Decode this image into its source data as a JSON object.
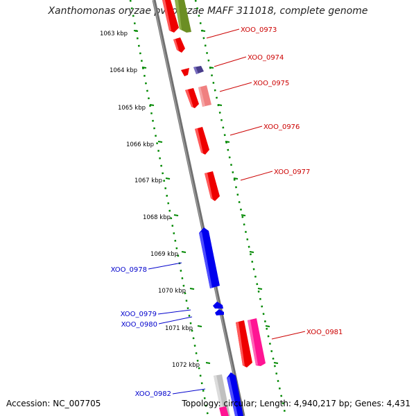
{
  "header": {
    "title": "Xanthomonas oryzae pv. oryzae MAFF 311018, complete genome"
  },
  "footer": {
    "accession": "Accession: NC_007705",
    "summary": "Topology: circular; Length: 4,940,217 bp; Genes: 4,431"
  },
  "colors": {
    "backbone": "#808080",
    "track_dots": "#008800",
    "forward_label": "#cc0000",
    "reverse_label": "#0000cc",
    "gene_red": "#ee0000",
    "gene_blue": "#0000ee",
    "gene_olive": "#6b8e23",
    "gene_pink": "#ff1493",
    "gene_salmon": "#f08080",
    "gene_purple": "#483d8b",
    "gene_gray": "#c0c0c0"
  },
  "scale_ticks": [
    "1063 kbp",
    "1064 kbp",
    "1065 kbp",
    "1066 kbp",
    "1067 kbp",
    "1068 kbp",
    "1069 kbp",
    "1070 kbp",
    "1071 kbp",
    "1072 kbp"
  ],
  "gene_labels": {
    "forward": [
      "XOO_0973",
      "XOO_0974",
      "XOO_0975",
      "XOO_0976",
      "XOO_0977",
      "XOO_0981"
    ],
    "reverse": [
      "XOO_0978",
      "XOO_0979",
      "XOO_0980",
      "XOO_0982"
    ]
  }
}
